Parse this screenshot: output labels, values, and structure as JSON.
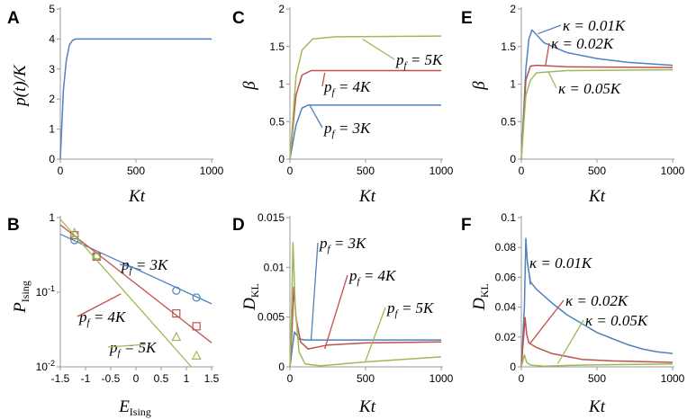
{
  "chart_data": [
    {
      "id": "A",
      "panel_label": "A",
      "type": "line",
      "ylabel": "p(t)/K",
      "xlabel": "Kt",
      "xlim": [
        0,
        1000
      ],
      "ylim": [
        0,
        5
      ],
      "xticks": [
        0,
        500,
        1000
      ],
      "yticks": [
        0,
        1,
        2,
        3,
        4,
        5
      ],
      "series": [
        {
          "name": "p(t)/K",
          "color": "#4F81BD",
          "points": [
            [
              0,
              0
            ],
            [
              20,
              2.3
            ],
            [
              40,
              3.3
            ],
            [
              60,
              3.8
            ],
            [
              80,
              3.95
            ],
            [
              100,
              4
            ],
            [
              1000,
              4
            ]
          ]
        }
      ]
    },
    {
      "id": "C",
      "panel_label": "C",
      "type": "line",
      "ylabel": "β",
      "xlabel": "Kt",
      "xlim": [
        0,
        1000
      ],
      "ylim": [
        0,
        2
      ],
      "xticks": [
        0,
        500,
        1000
      ],
      "ytick_labels": [
        "0",
        "0.5",
        "1",
        "1.5",
        "2"
      ],
      "yticks": [
        0,
        0.5,
        1,
        1.5,
        2
      ],
      "series": [
        {
          "name": "p_f = 3K",
          "color": "#4F81BD",
          "points": [
            [
              0,
              0
            ],
            [
              40,
              0.45
            ],
            [
              80,
              0.68
            ],
            [
              120,
              0.72
            ],
            [
              1000,
              0.72
            ]
          ]
        },
        {
          "name": "p_f = 4K",
          "color": "#C0504D",
          "points": [
            [
              0,
              0
            ],
            [
              40,
              0.85
            ],
            [
              80,
              1.12
            ],
            [
              140,
              1.18
            ],
            [
              1000,
              1.18
            ]
          ]
        },
        {
          "name": "p_f = 5K",
          "color": "#9BBB59",
          "points": [
            [
              0,
              0
            ],
            [
              40,
              1.1
            ],
            [
              80,
              1.45
            ],
            [
              150,
              1.6
            ],
            [
              300,
              1.63
            ],
            [
              1000,
              1.64
            ]
          ]
        }
      ],
      "annotations": [
        {
          "text_base": "p",
          "text_sub": "f",
          "text_rest": " = 5K",
          "color": "#9BBB59",
          "at": [
            480,
            1.6
          ]
        },
        {
          "text_base": "p",
          "text_sub": "f",
          "text_rest": " = 4K",
          "color": "#C0504D",
          "at": [
            230,
            1.15
          ]
        },
        {
          "text_base": "p",
          "text_sub": "f",
          "text_rest": " = 3K",
          "color": "#4F81BD",
          "at": [
            130,
            0.72
          ]
        }
      ]
    },
    {
      "id": "E",
      "panel_label": "E",
      "type": "line",
      "ylabel": "β",
      "xlabel": "Kt",
      "xlim": [
        0,
        1000
      ],
      "ylim": [
        0,
        2
      ],
      "xticks": [
        0,
        500,
        1000
      ],
      "ytick_labels": [
        "0",
        "0.5",
        "1",
        "1.5",
        "2"
      ],
      "yticks": [
        0,
        0.5,
        1,
        1.5,
        2
      ],
      "series": [
        {
          "name": "κ = 0.01K",
          "color": "#4F81BD",
          "points": [
            [
              0,
              0
            ],
            [
              30,
              1.2
            ],
            [
              50,
              1.6
            ],
            [
              70,
              1.72
            ],
            [
              90,
              1.68
            ],
            [
              150,
              1.55
            ],
            [
              300,
              1.42
            ],
            [
              500,
              1.34
            ],
            [
              700,
              1.29
            ],
            [
              1000,
              1.25
            ]
          ]
        },
        {
          "name": "κ = 0.02K",
          "color": "#C0504D",
          "points": [
            [
              0,
              0
            ],
            [
              30,
              1.05
            ],
            [
              60,
              1.24
            ],
            [
              100,
              1.25
            ],
            [
              300,
              1.23
            ],
            [
              1000,
              1.22
            ]
          ]
        },
        {
          "name": "κ = 0.05K",
          "color": "#9BBB59",
          "points": [
            [
              0,
              0
            ],
            [
              30,
              0.85
            ],
            [
              60,
              1.05
            ],
            [
              100,
              1.15
            ],
            [
              300,
              1.18
            ],
            [
              1000,
              1.19
            ]
          ]
        }
      ],
      "annotations": [
        {
          "text": "κ = 0.01K",
          "color": "#4F81BD",
          "at": [
            110,
            1.67
          ]
        },
        {
          "text": "κ = 0.02K",
          "color": "#C0504D",
          "at": [
            160,
            1.25
          ]
        },
        {
          "text": "κ = 0.05K",
          "color": "#9BBB59",
          "at": [
            180,
            1.16
          ]
        }
      ]
    },
    {
      "id": "B",
      "panel_label": "B",
      "type": "scatter",
      "ylabel_base": "P",
      "ylabel_sub": "Ising",
      "xlabel_base": "E",
      "xlabel_sub": "Ising",
      "yscale": "log",
      "xlim": [
        -1.5,
        1.5
      ],
      "ylim": [
        0.01,
        1
      ],
      "xticks": [
        -1.5,
        -1,
        -0.5,
        0,
        0.5,
        1,
        1.5
      ],
      "xtick_labels": [
        "-1.5",
        "-1",
        "-0.5",
        "0",
        "0.5",
        "1",
        "1.5"
      ],
      "yticks": [
        0.01,
        0.1,
        1
      ],
      "ytick_labels": [
        [
          "10",
          "-2"
        ],
        [
          "10",
          "-1"
        ],
        [
          "1",
          ""
        ]
      ],
      "series": [
        {
          "name": "p_f = 3K",
          "color": "#4F81BD",
          "marker": "circle",
          "points": [
            [
              -1.22,
              0.5
            ],
            [
              -0.78,
              0.3
            ],
            [
              0.8,
              0.105
            ],
            [
              1.2,
              0.085
            ]
          ],
          "fit": [
            [
              -1.5,
              0.6
            ],
            [
              1.5,
              0.07
            ]
          ]
        },
        {
          "name": "p_f = 4K",
          "color": "#C0504D",
          "marker": "square",
          "points": [
            [
              -1.22,
              0.58
            ],
            [
              -0.78,
              0.3
            ],
            [
              0.8,
              0.052
            ],
            [
              1.2,
              0.035
            ]
          ],
          "fit": [
            [
              -1.5,
              0.8
            ],
            [
              1.5,
              0.021
            ]
          ]
        },
        {
          "name": "p_f = 5K",
          "color": "#9BBB59",
          "marker": "triangle",
          "points": [
            [
              -1.22,
              0.62
            ],
            [
              -0.78,
              0.31
            ],
            [
              0.8,
              0.025
            ],
            [
              1.2,
              0.014
            ]
          ],
          "fit": [
            [
              -1.5,
              0.95
            ],
            [
              1.1,
              0.01
            ]
          ]
        }
      ],
      "annotations": [
        {
          "text_base": "p",
          "text_sub": "f",
          "text_rest": " = 3K",
          "color": "#4F81BD",
          "at": [
            0.1,
            0.2
          ]
        },
        {
          "text_base": "p",
          "text_sub": "f",
          "text_rest": " = 4K",
          "color": "#C0504D",
          "at": [
            -0.3,
            0.095
          ]
        },
        {
          "text_base": "p",
          "text_sub": "f",
          "text_rest": " = 5K",
          "color": "#9BBB59",
          "at": [
            0.2,
            0.02
          ]
        }
      ]
    },
    {
      "id": "D",
      "panel_label": "D",
      "type": "line",
      "ylabel_base": "D",
      "ylabel_sub": "KL",
      "xlabel": "Kt",
      "xlim": [
        0,
        1000
      ],
      "ylim": [
        0,
        0.015
      ],
      "xticks": [
        0,
        500,
        1000
      ],
      "ytick_labels": [
        "0",
        "0.005",
        "0.01",
        "0.015"
      ],
      "yticks": [
        0,
        0.005,
        0.01,
        0.015
      ],
      "series": [
        {
          "name": "p_f = 3K",
          "color": "#4F81BD",
          "points": [
            [
              0,
              0
            ],
            [
              15,
              0.0018
            ],
            [
              30,
              0.0035
            ],
            [
              45,
              0.0032
            ],
            [
              60,
              0.0028
            ],
            [
              100,
              0.0027
            ],
            [
              1000,
              0.0027
            ]
          ]
        },
        {
          "name": "p_f = 4K",
          "color": "#C0504D",
          "points": [
            [
              0,
              0
            ],
            [
              15,
              0.004
            ],
            [
              25,
              0.008
            ],
            [
              40,
              0.005
            ],
            [
              70,
              0.0025
            ],
            [
              120,
              0.0018
            ],
            [
              250,
              0.0022
            ],
            [
              500,
              0.0024
            ],
            [
              1000,
              0.0025
            ]
          ]
        },
        {
          "name": "p_f = 5K",
          "color": "#9BBB59",
          "points": [
            [
              0,
              0
            ],
            [
              10,
              0.005
            ],
            [
              20,
              0.0125
            ],
            [
              35,
              0.006
            ],
            [
              60,
              0.0015
            ],
            [
              100,
              0.0003
            ],
            [
              200,
              0.0001
            ],
            [
              500,
              0.0005
            ],
            [
              1000,
              0.001
            ]
          ]
        }
      ],
      "annotations": [
        {
          "text_base": "p",
          "text_sub": "f",
          "text_rest": " = 3K",
          "color": "#4F81BD",
          "at": [
            140,
            0.0027
          ]
        },
        {
          "text_base": "p",
          "text_sub": "f",
          "text_rest": " = 4K",
          "color": "#C0504D",
          "at": [
            230,
            0.0018
          ]
        },
        {
          "text_base": "p",
          "text_sub": "f",
          "text_rest": " = 5K",
          "color": "#9BBB59",
          "at": [
            500,
            0.0006
          ]
        }
      ]
    },
    {
      "id": "F",
      "panel_label": "F",
      "type": "line",
      "ylabel_base": "D",
      "ylabel_sub": "KL",
      "xlabel": "Kt",
      "xlim": [
        0,
        1000
      ],
      "ylim": [
        0,
        0.1
      ],
      "xticks": [
        0,
        500,
        1000
      ],
      "ytick_labels": [
        "0",
        "0.02",
        "0.04",
        "0.06",
        "0.08",
        "0.1"
      ],
      "yticks": [
        0,
        0.02,
        0.04,
        0.06,
        0.08,
        0.1
      ],
      "series": [
        {
          "name": "κ = 0.01K",
          "color": "#4F81BD",
          "points": [
            [
              0,
              0
            ],
            [
              20,
              0.04
            ],
            [
              30,
              0.086
            ],
            [
              40,
              0.07
            ],
            [
              60,
              0.057
            ],
            [
              100,
              0.052
            ],
            [
              200,
              0.043
            ],
            [
              300,
              0.035
            ],
            [
              400,
              0.029
            ],
            [
              500,
              0.023
            ],
            [
              600,
              0.019
            ],
            [
              700,
              0.015
            ],
            [
              800,
              0.012
            ],
            [
              900,
              0.01
            ],
            [
              1000,
              0.009
            ]
          ]
        },
        {
          "name": "κ = 0.02K",
          "color": "#C0504D",
          "points": [
            [
              0,
              0
            ],
            [
              15,
              0.02
            ],
            [
              25,
              0.033
            ],
            [
              35,
              0.022
            ],
            [
              50,
              0.016
            ],
            [
              100,
              0.013
            ],
            [
              200,
              0.009
            ],
            [
              400,
              0.005
            ],
            [
              600,
              0.004
            ],
            [
              1000,
              0.003
            ]
          ]
        },
        {
          "name": "κ = 0.05K",
          "color": "#9BBB59",
          "points": [
            [
              0,
              0
            ],
            [
              10,
              0.004
            ],
            [
              20,
              0.008
            ],
            [
              35,
              0.003
            ],
            [
              60,
              0.0012
            ],
            [
              150,
              0.0005
            ],
            [
              400,
              0.0012
            ],
            [
              1000,
              0.002
            ]
          ]
        }
      ],
      "annotations": [
        {
          "text": "κ = 0.01K",
          "color": "#4F81BD",
          "at": [
            60,
            0.055
          ]
        },
        {
          "text": "κ = 0.02K",
          "color": "#C0504D",
          "at": [
            60,
            0.016
          ]
        },
        {
          "text": "κ = 0.05K",
          "color": "#9BBB59",
          "at": [
            240,
            0.002
          ]
        }
      ]
    }
  ]
}
